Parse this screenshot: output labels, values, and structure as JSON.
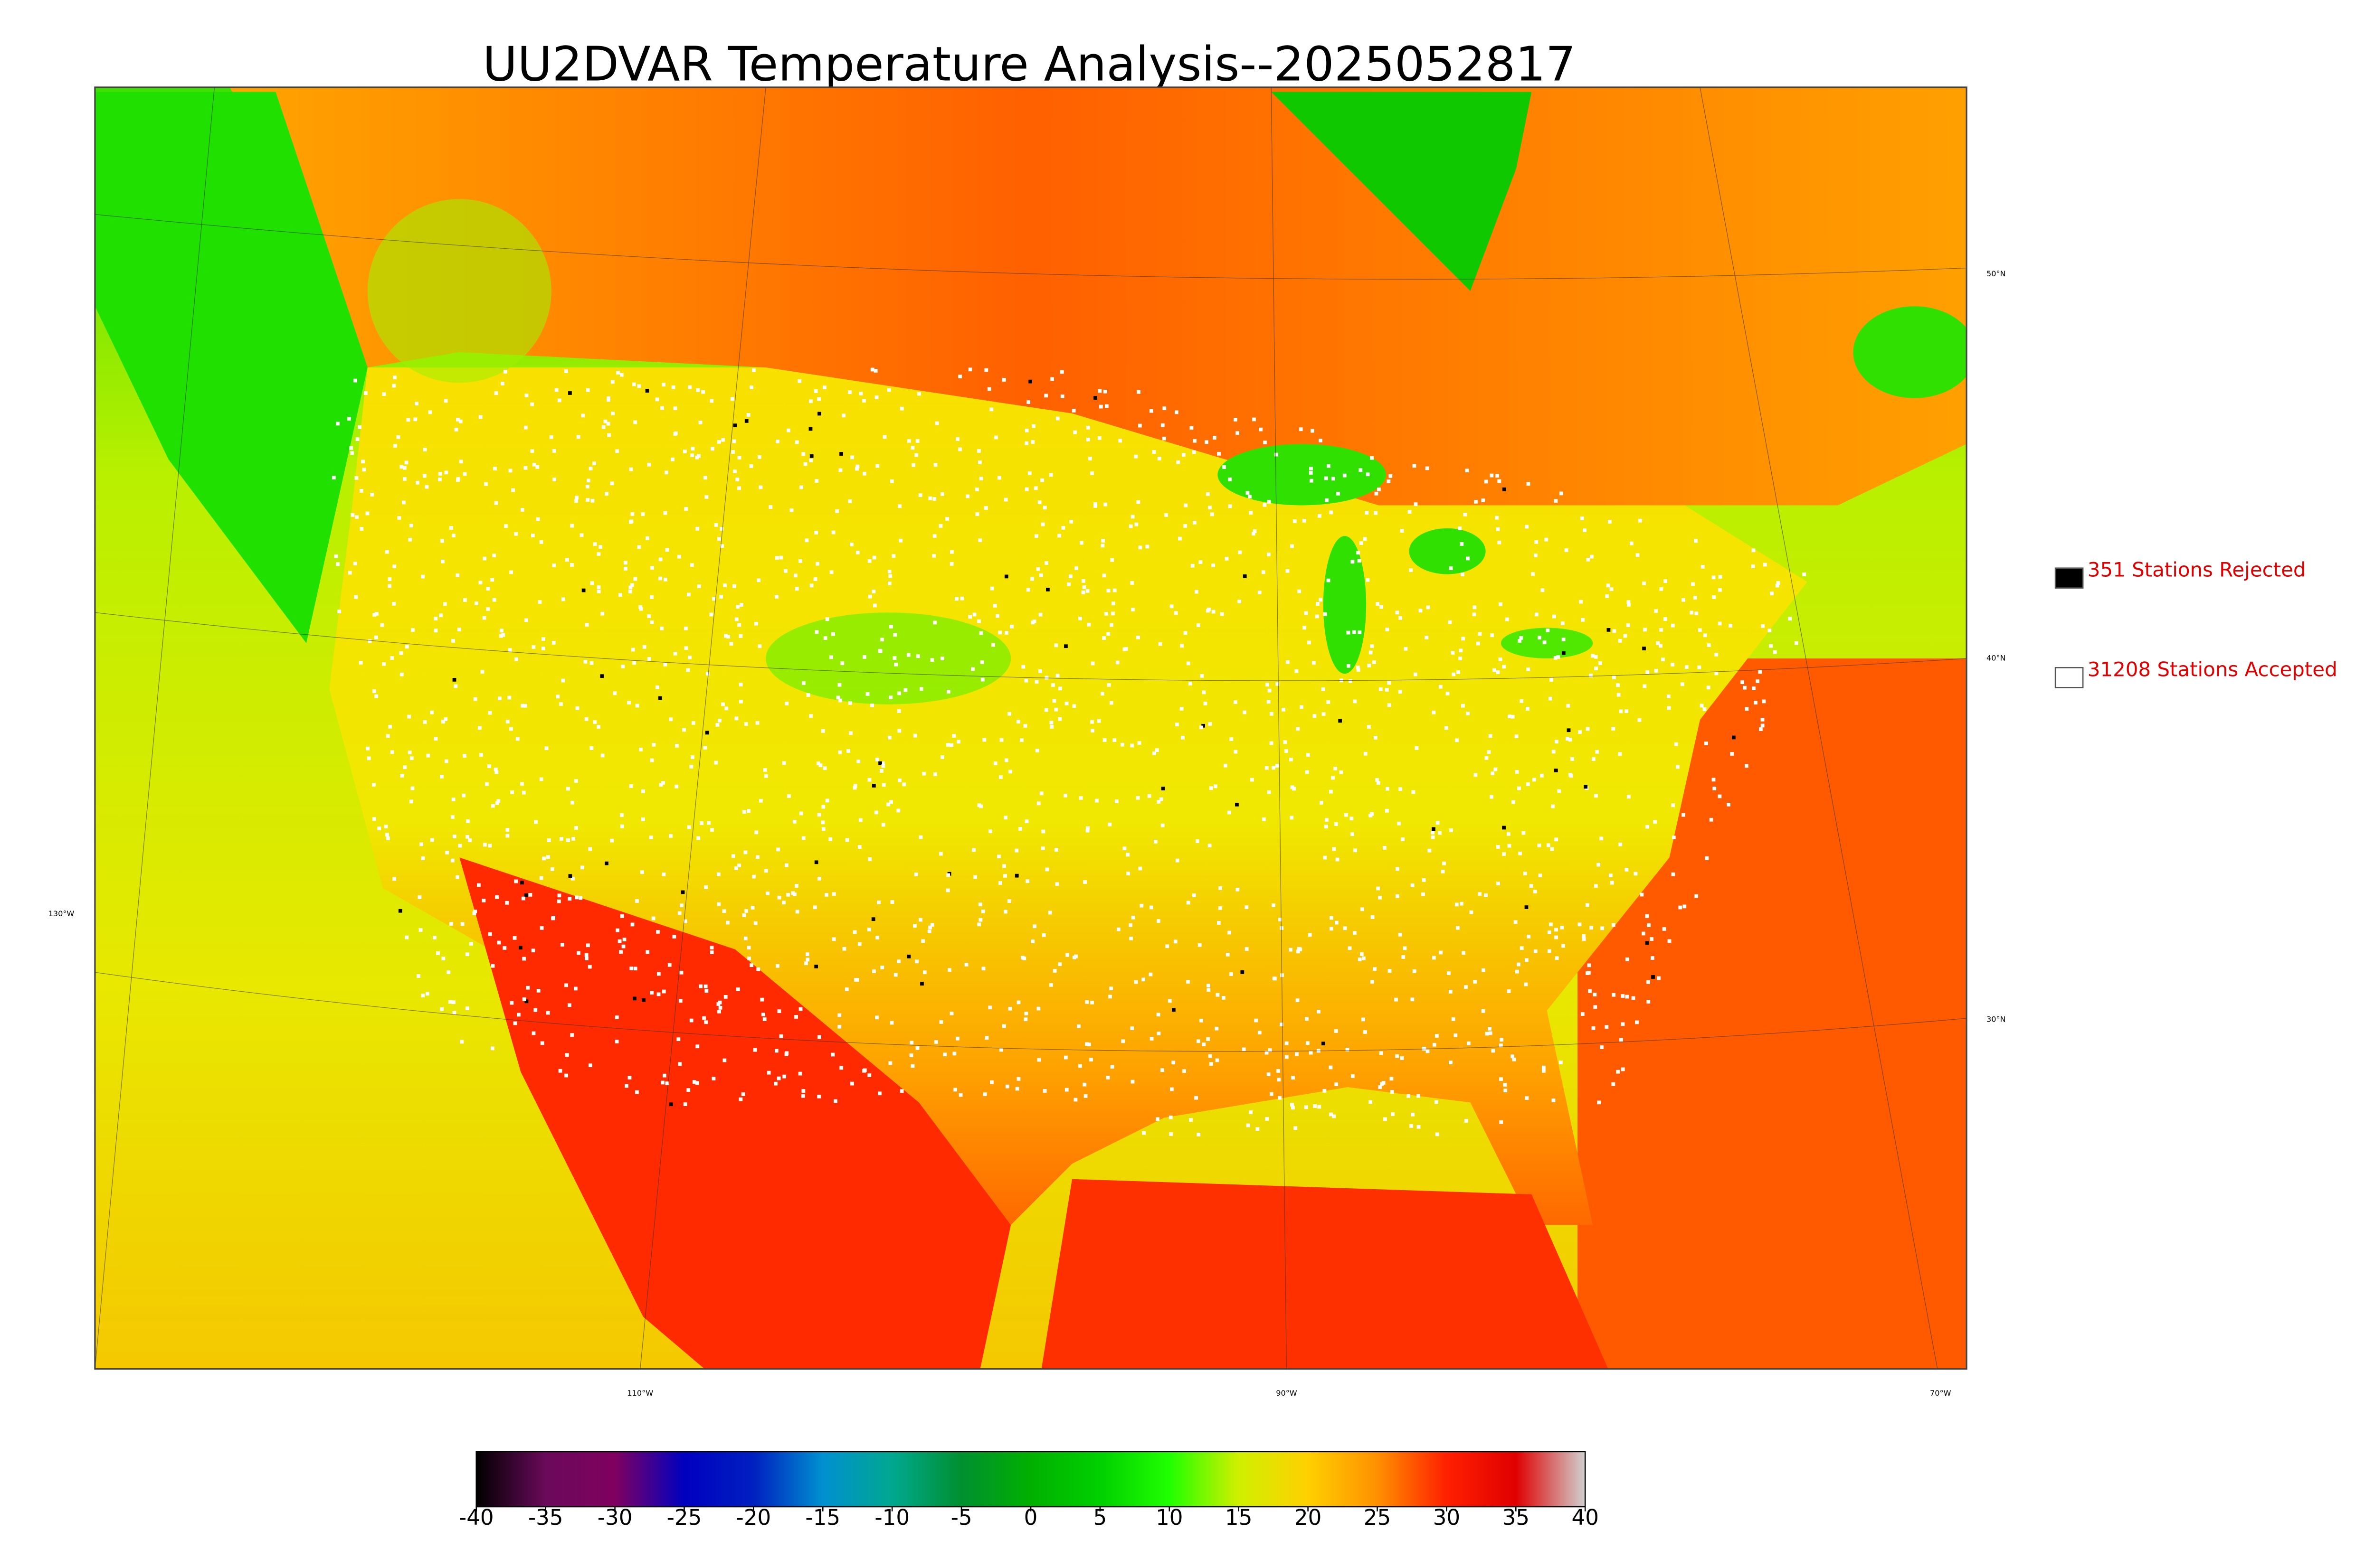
{
  "title": "UU2DVAR Temperature Analysis--2025052817",
  "legend": [
    {
      "label": "351 Stations Rejected",
      "color": "#000000"
    },
    {
      "label": "31208 Stations Accepted",
      "color": "#ffffff"
    }
  ],
  "graticule_labels": {
    "lat": [
      "50°N",
      "40°N",
      "30°N"
    ],
    "lon": [
      "130°W",
      "110°W",
      "90°W",
      "70°W"
    ]
  },
  "colorbar": {
    "lim": [
      -40,
      40
    ],
    "ticks": [
      -40,
      -35,
      -30,
      -25,
      -20,
      -15,
      -10,
      -5,
      0,
      5,
      10,
      15,
      20,
      25,
      30,
      35,
      40
    ],
    "colors": [
      "#000000",
      "#6a0a5a",
      "#800060",
      "#0000c0",
      "#0020c0",
      "#0090d0",
      "#00a890",
      "#009030",
      "#00b000",
      "#00d000",
      "#20ff00",
      "#d0f000",
      "#ffd000",
      "#ff9000",
      "#ff2000",
      "#e00000",
      "#d0d0d0"
    ]
  }
}
